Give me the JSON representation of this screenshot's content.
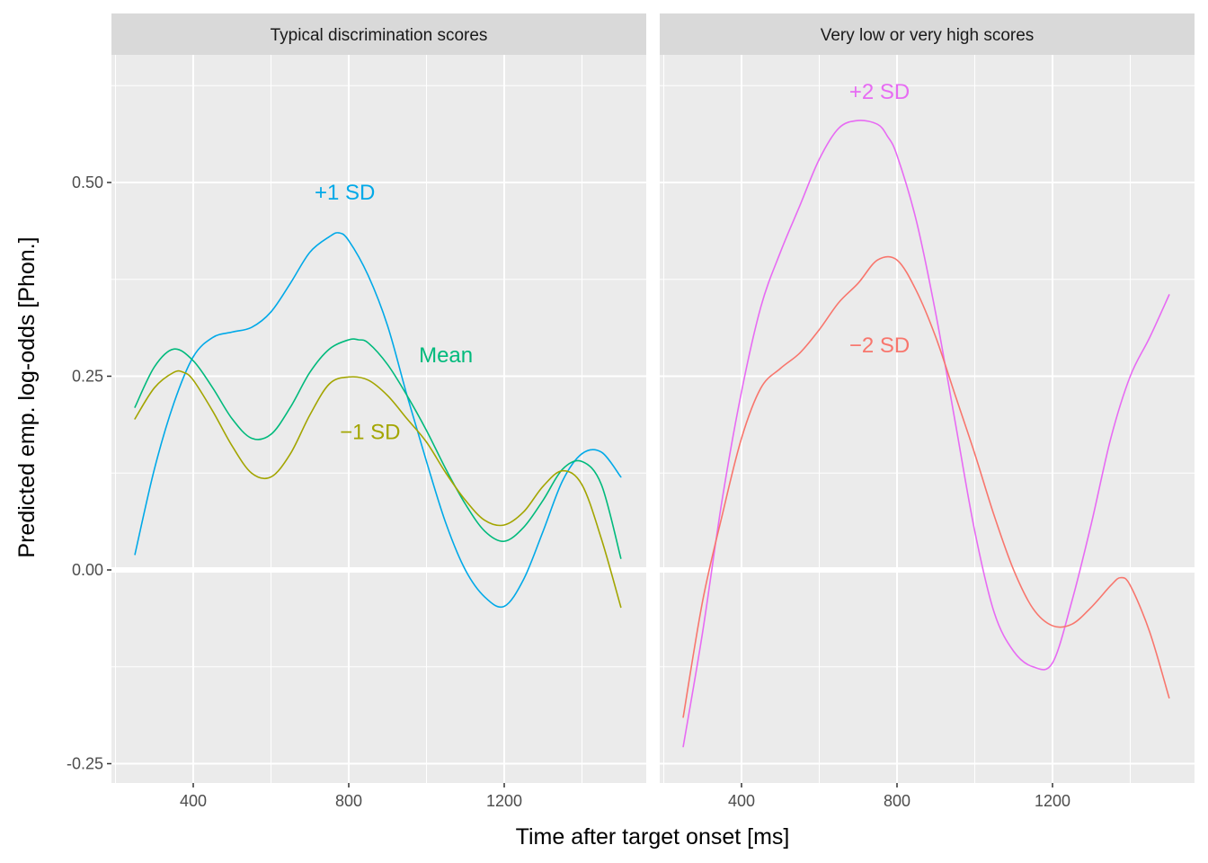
{
  "chart_data": {
    "type": "line",
    "xlabel": "Time after target onset [ms]",
    "ylabel": "Predicted emp. log-odds [Phon.]",
    "xlim": [
      200,
      1580
    ],
    "ylim": [
      -0.27,
      0.66
    ],
    "x_ticks": [
      400,
      800,
      1200
    ],
    "x_tick_labels": [
      "400",
      "800",
      "1200"
    ],
    "y_ticks": [
      -0.25,
      0,
      0.25,
      0.5
    ],
    "y_tick_labels": [
      "-0.25",
      "0.00",
      "0.25",
      "0.50"
    ],
    "grid": true,
    "legend": "none (series labelled directly on panels)",
    "panels": [
      {
        "strip": "Typical discrimination scores",
        "series": [
          {
            "name": "+1 SD",
            "color": "#00A9E8",
            "label": {
              "text": "+1 SD",
              "x": 790,
              "y": 0.487
            },
            "x": [
              250,
              300,
              350,
              400,
              450,
              500,
              550,
              600,
              650,
              700,
              750,
              775,
              800,
              850,
              900,
              950,
              1000,
              1050,
              1100,
              1150,
              1200,
              1250,
              1300,
              1350,
              1400,
              1450,
              1500
            ],
            "y": [
              0.02,
              0.13,
              0.215,
              0.275,
              0.3,
              0.307,
              0.313,
              0.333,
              0.37,
              0.41,
              0.43,
              0.435,
              0.425,
              0.38,
              0.315,
              0.225,
              0.14,
              0.06,
              0.0,
              -0.035,
              -0.047,
              -0.012,
              0.05,
              0.115,
              0.15,
              0.152,
              0.12
            ]
          },
          {
            "name": "Mean",
            "color": "#00BA7C",
            "label": {
              "text": "Mean",
              "x": 1050,
              "y": 0.277
            },
            "x": [
              250,
              300,
              350,
              400,
              450,
              500,
              550,
              600,
              650,
              700,
              750,
              800,
              825,
              850,
              900,
              950,
              1000,
              1050,
              1100,
              1150,
              1200,
              1250,
              1300,
              1350,
              1400,
              1450,
              1500
            ],
            "y": [
              0.21,
              0.262,
              0.285,
              0.27,
              0.235,
              0.195,
              0.17,
              0.175,
              0.21,
              0.255,
              0.285,
              0.297,
              0.297,
              0.293,
              0.265,
              0.225,
              0.18,
              0.13,
              0.085,
              0.05,
              0.037,
              0.055,
              0.09,
              0.13,
              0.14,
              0.11,
              0.015
            ]
          },
          {
            "name": "−1 SD",
            "color": "#A3A500",
            "label": {
              "text": "−1 SD",
              "x": 855,
              "y": 0.178
            },
            "x": [
              250,
              300,
              350,
              375,
              400,
              450,
              500,
              550,
              600,
              650,
              700,
              750,
              800,
              850,
              900,
              950,
              1000,
              1050,
              1100,
              1150,
              1200,
              1250,
              1300,
              1350,
              1400,
              1450,
              1500
            ],
            "y": [
              0.195,
              0.235,
              0.255,
              0.255,
              0.245,
              0.205,
              0.16,
              0.125,
              0.12,
              0.15,
              0.2,
              0.24,
              0.249,
              0.245,
              0.225,
              0.195,
              0.165,
              0.125,
              0.09,
              0.064,
              0.058,
              0.075,
              0.108,
              0.128,
              0.11,
              0.04,
              -0.048
            ]
          }
        ]
      },
      {
        "strip": "Very low or very high scores",
        "series": [
          {
            "name": "+2 SD",
            "color": "#E76BF3",
            "label": {
              "text": "+2 SD",
              "x": 755,
              "y": 0.617
            },
            "x": [
              250,
              300,
              350,
              400,
              450,
              500,
              550,
              600,
              650,
              700,
              750,
              775,
              800,
              850,
              900,
              950,
              1000,
              1050,
              1100,
              1150,
              1200,
              1250,
              1300,
              1350,
              1400,
              1450,
              1500
            ],
            "y": [
              -0.228,
              -0.08,
              0.09,
              0.23,
              0.34,
              0.41,
              0.47,
              0.53,
              0.57,
              0.58,
              0.575,
              0.56,
              0.535,
              0.45,
              0.33,
              0.19,
              0.05,
              -0.055,
              -0.105,
              -0.125,
              -0.12,
              -0.04,
              0.06,
              0.17,
              0.25,
              0.3,
              0.355
            ]
          },
          {
            "name": "−2 SD",
            "color": "#F8766D",
            "label": {
              "text": "−2 SD",
              "x": 755,
              "y": 0.29
            },
            "x": [
              250,
              300,
              350,
              400,
              450,
              500,
              550,
              600,
              650,
              700,
              750,
              800,
              850,
              900,
              950,
              1000,
              1050,
              1100,
              1150,
              1200,
              1250,
              1300,
              1350,
              1375,
              1400,
              1450,
              1500
            ],
            "y": [
              -0.19,
              -0.04,
              0.07,
              0.17,
              0.235,
              0.26,
              0.28,
              0.31,
              0.345,
              0.37,
              0.4,
              0.4,
              0.36,
              0.3,
              0.225,
              0.15,
              0.07,
              0.0,
              -0.05,
              -0.072,
              -0.07,
              -0.048,
              -0.02,
              -0.01,
              -0.02,
              -0.08,
              -0.165
            ]
          }
        ]
      }
    ]
  }
}
